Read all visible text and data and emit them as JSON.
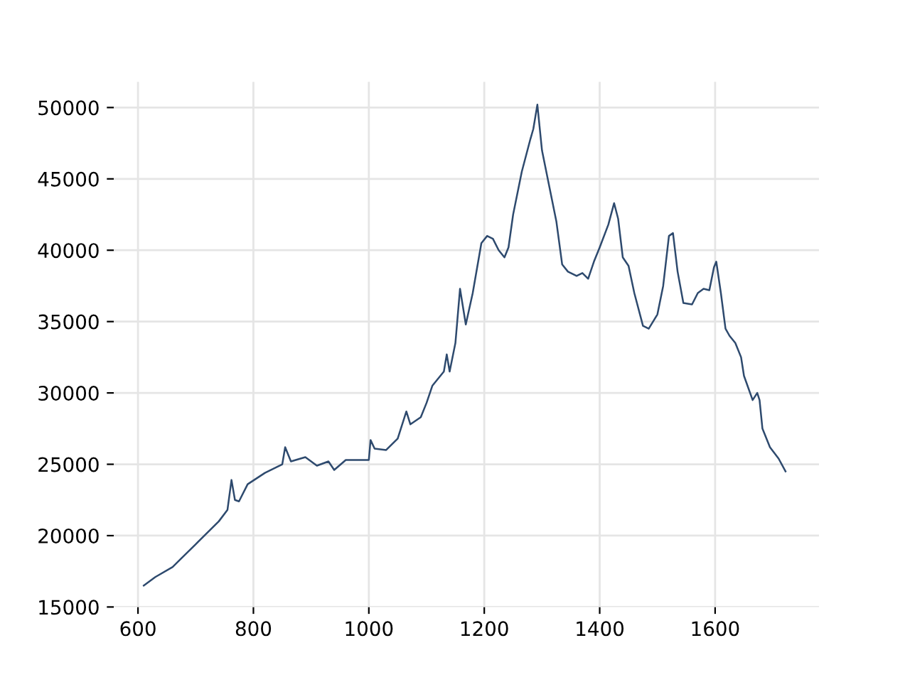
{
  "chart_data": {
    "type": "line",
    "x": [
      610,
      630,
      660,
      700,
      740,
      755,
      762,
      768,
      775,
      790,
      820,
      850,
      855,
      865,
      890,
      910,
      930,
      940,
      960,
      1000,
      1003,
      1010,
      1030,
      1050,
      1065,
      1072,
      1090,
      1100,
      1110,
      1130,
      1135,
      1140,
      1150,
      1158,
      1168,
      1180,
      1195,
      1205,
      1215,
      1225,
      1235,
      1242,
      1250,
      1265,
      1280,
      1285,
      1292,
      1300,
      1310,
      1325,
      1335,
      1345,
      1360,
      1370,
      1380,
      1390,
      1400,
      1415,
      1425,
      1432,
      1440,
      1450,
      1460,
      1475,
      1485,
      1500,
      1510,
      1520,
      1527,
      1535,
      1545,
      1560,
      1570,
      1580,
      1590,
      1598,
      1602,
      1610,
      1618,
      1625,
      1635,
      1645,
      1650,
      1665,
      1673,
      1677,
      1682,
      1695,
      1710,
      1722
    ],
    "series": [
      {
        "color": "#2e4a6e",
        "values": [
          16500,
          17100,
          17800,
          19400,
          21000,
          21800,
          23900,
          22500,
          22400,
          23600,
          24400,
          25000,
          26200,
          25200,
          25500,
          24900,
          25200,
          24600,
          25300,
          25300,
          26700,
          26100,
          26000,
          26800,
          28700,
          27800,
          28300,
          29300,
          30500,
          31500,
          32700,
          31500,
          33500,
          37300,
          34800,
          37000,
          40500,
          41000,
          40800,
          40000,
          39500,
          40200,
          42500,
          45500,
          47800,
          48500,
          50200,
          47000,
          45000,
          42000,
          39000,
          38500,
          38200,
          38400,
          38000,
          39200,
          40200,
          41800,
          43300,
          42200,
          39500,
          38900,
          37000,
          34700,
          34500,
          35500,
          37500,
          41000,
          41200,
          38500,
          36300,
          36200,
          37000,
          37300,
          37200,
          38800,
          39200,
          37000,
          34500,
          34000,
          33500,
          32500,
          31200,
          29500,
          30000,
          29500,
          27500,
          26200,
          25400,
          24500
        ]
      }
    ],
    "xlim": [
      558,
      1780
    ],
    "xticks": [
      600,
      800,
      1000,
      1200,
      1400,
      1600
    ],
    "ylim": [
      15000,
      51800
    ],
    "yticks": [
      15000,
      20000,
      25000,
      30000,
      35000,
      40000,
      45000,
      50000
    ],
    "grid": true,
    "legend": false,
    "marker": "none",
    "line_style": "solid"
  }
}
